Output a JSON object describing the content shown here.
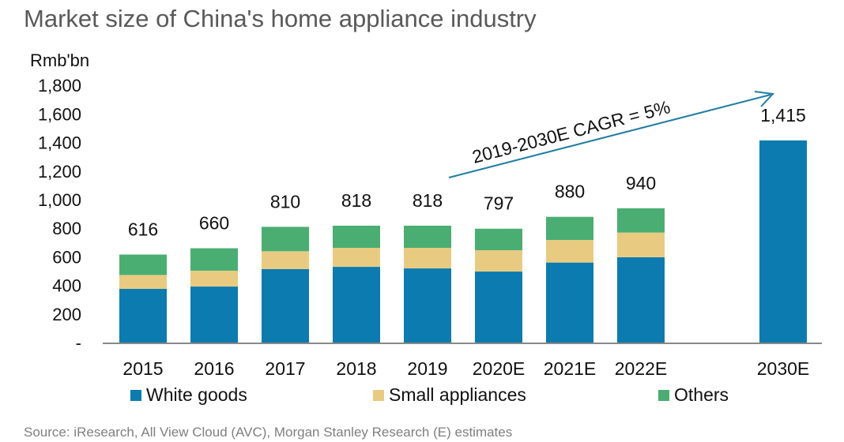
{
  "chart_data": {
    "type": "bar",
    "stacked": true,
    "title": "Market size of China's home appliance industry",
    "ylabel": "Rmb'bn",
    "ylim": [
      0,
      1800
    ],
    "yticks": [
      0,
      200,
      400,
      600,
      800,
      1000,
      1200,
      1400,
      1600,
      1800
    ],
    "ytick_labels": [
      "-",
      "200",
      "400",
      "600",
      "800",
      "1,000",
      "1,200",
      "1,400",
      "1,600",
      "1,800"
    ],
    "grid": false,
    "legend": "bottom",
    "categories": [
      "2015",
      "2016",
      "2017",
      "2018",
      "2019",
      "2020E",
      "2021E",
      "2022E",
      "2030E"
    ],
    "series": [
      {
        "name": "White goods",
        "color": "#0b7bb0",
        "values": [
          376,
          392,
          514,
          530,
          519,
          497,
          560,
          597,
          1415
        ]
      },
      {
        "name": "Small appliances",
        "color": "#e8cb81",
        "values": [
          97,
          111,
          125,
          133,
          144,
          149,
          158,
          173,
          0
        ]
      },
      {
        "name": "Others",
        "color": "#4aae72",
        "values": [
          143,
          157,
          171,
          155,
          155,
          151,
          162,
          170,
          0
        ]
      }
    ],
    "totals": [
      616,
      660,
      810,
      818,
      818,
      797,
      880,
      940,
      1415
    ],
    "total_labels": [
      "616",
      "660",
      "810",
      "818",
      "818",
      "797",
      "880",
      "940",
      "1,415"
    ],
    "annotation": {
      "text": "2019-2030E CAGR = 5%",
      "color": "#1f7ea1"
    }
  },
  "source": "Source: iResearch, All View Cloud (AVC), Morgan Stanley Research (E) estimates"
}
